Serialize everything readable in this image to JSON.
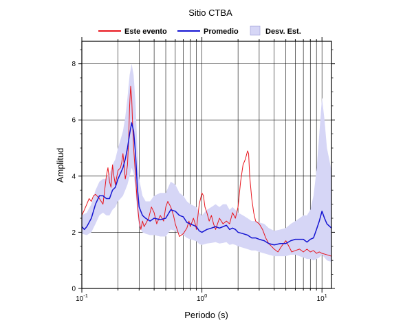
{
  "chart_data": {
    "type": "line",
    "title": "Sitio CTBA",
    "xlabel": "Periodo (s)",
    "ylabel": "Amplitud",
    "x_scale": "log",
    "xlim": [
      0.1,
      12
    ],
    "ylim": [
      0,
      8.8
    ],
    "x_tick_labels": [
      {
        "value": 0.1,
        "base": "10",
        "exp": "-1"
      },
      {
        "value": 1,
        "base": "10",
        "exp": "0"
      },
      {
        "value": 10,
        "base": "10",
        "exp": "1"
      }
    ],
    "y_ticks": [
      0,
      2,
      4,
      6,
      8
    ],
    "grid": true,
    "legend": {
      "placement": "top",
      "entries": [
        {
          "label": "Este evento",
          "kind": "line",
          "color": "#e8141c"
        },
        {
          "label": "Promedio",
          "kind": "line",
          "color": "#1414d2"
        },
        {
          "label": "Desv. Est.",
          "kind": "band",
          "color": "#d6d6f6"
        }
      ]
    },
    "series": [
      {
        "name": "Este evento",
        "color": "#e8141c",
        "points": [
          [
            0.1,
            2.6
          ],
          [
            0.105,
            2.8
          ],
          [
            0.11,
            3.0
          ],
          [
            0.115,
            3.2
          ],
          [
            0.12,
            3.1
          ],
          [
            0.125,
            3.3
          ],
          [
            0.13,
            3.35
          ],
          [
            0.14,
            3.2
          ],
          [
            0.15,
            3.0
          ],
          [
            0.155,
            3.5
          ],
          [
            0.16,
            4.0
          ],
          [
            0.165,
            4.3
          ],
          [
            0.17,
            3.8
          ],
          [
            0.175,
            3.6
          ],
          [
            0.18,
            4.4
          ],
          [
            0.185,
            4.0
          ],
          [
            0.19,
            3.7
          ],
          [
            0.2,
            4.2
          ],
          [
            0.21,
            4.3
          ],
          [
            0.215,
            4.5
          ],
          [
            0.22,
            4.8
          ],
          [
            0.225,
            4.4
          ],
          [
            0.23,
            3.9
          ],
          [
            0.235,
            4.1
          ],
          [
            0.24,
            4.4
          ],
          [
            0.245,
            5.2
          ],
          [
            0.25,
            6.5
          ],
          [
            0.255,
            7.2
          ],
          [
            0.26,
            6.8
          ],
          [
            0.265,
            5.8
          ],
          [
            0.27,
            5.0
          ],
          [
            0.28,
            4.0
          ],
          [
            0.29,
            3.0
          ],
          [
            0.3,
            2.4
          ],
          [
            0.31,
            2.1
          ],
          [
            0.32,
            2.4
          ],
          [
            0.33,
            2.2
          ],
          [
            0.34,
            2.3
          ],
          [
            0.36,
            2.5
          ],
          [
            0.38,
            2.9
          ],
          [
            0.4,
            2.7
          ],
          [
            0.42,
            2.3
          ],
          [
            0.45,
            2.6
          ],
          [
            0.48,
            2.4
          ],
          [
            0.5,
            2.9
          ],
          [
            0.52,
            3.1
          ],
          [
            0.55,
            2.9
          ],
          [
            0.58,
            2.6
          ],
          [
            0.6,
            2.3
          ],
          [
            0.65,
            1.85
          ],
          [
            0.7,
            1.95
          ],
          [
            0.75,
            2.15
          ],
          [
            0.78,
            2.4
          ],
          [
            0.8,
            2.2
          ],
          [
            0.85,
            2.5
          ],
          [
            0.88,
            2.3
          ],
          [
            0.9,
            2.1
          ],
          [
            0.95,
            3.0
          ],
          [
            1.0,
            3.4
          ],
          [
            1.03,
            3.3
          ],
          [
            1.06,
            2.9
          ],
          [
            1.1,
            2.7
          ],
          [
            1.15,
            2.4
          ],
          [
            1.2,
            2.6
          ],
          [
            1.25,
            2.3
          ],
          [
            1.3,
            2.1
          ],
          [
            1.4,
            2.5
          ],
          [
            1.5,
            2.3
          ],
          [
            1.6,
            2.4
          ],
          [
            1.7,
            2.3
          ],
          [
            1.8,
            2.7
          ],
          [
            1.9,
            2.5
          ],
          [
            2.0,
            2.9
          ],
          [
            2.1,
            3.8
          ],
          [
            2.2,
            4.4
          ],
          [
            2.3,
            4.6
          ],
          [
            2.4,
            4.9
          ],
          [
            2.45,
            4.8
          ],
          [
            2.5,
            4.0
          ],
          [
            2.6,
            3.2
          ],
          [
            2.7,
            2.7
          ],
          [
            2.8,
            2.4
          ],
          [
            3.0,
            2.3
          ],
          [
            3.2,
            2.1
          ],
          [
            3.4,
            1.8
          ],
          [
            3.6,
            1.6
          ],
          [
            3.8,
            1.5
          ],
          [
            4.0,
            1.4
          ],
          [
            4.3,
            1.3
          ],
          [
            4.6,
            1.5
          ],
          [
            5.0,
            1.7
          ],
          [
            5.3,
            1.5
          ],
          [
            5.6,
            1.3
          ],
          [
            6.0,
            1.35
          ],
          [
            6.5,
            1.4
          ],
          [
            7.0,
            1.3
          ],
          [
            7.5,
            1.4
          ],
          [
            8.0,
            1.3
          ],
          [
            8.5,
            1.35
          ],
          [
            9.0,
            1.25
          ],
          [
            9.5,
            1.3
          ],
          [
            10.0,
            1.25
          ],
          [
            11.0,
            1.2
          ],
          [
            12.0,
            1.15
          ]
        ]
      },
      {
        "name": "Promedio",
        "color": "#1414d2",
        "points": [
          [
            0.1,
            2.2
          ],
          [
            0.105,
            2.1
          ],
          [
            0.11,
            2.2
          ],
          [
            0.12,
            2.5
          ],
          [
            0.13,
            3.0
          ],
          [
            0.14,
            3.3
          ],
          [
            0.15,
            3.3
          ],
          [
            0.16,
            3.2
          ],
          [
            0.17,
            3.2
          ],
          [
            0.18,
            3.5
          ],
          [
            0.19,
            3.6
          ],
          [
            0.2,
            3.9
          ],
          [
            0.21,
            4.1
          ],
          [
            0.22,
            4.3
          ],
          [
            0.23,
            4.6
          ],
          [
            0.24,
            5.0
          ],
          [
            0.25,
            5.5
          ],
          [
            0.26,
            5.9
          ],
          [
            0.27,
            5.6
          ],
          [
            0.28,
            4.8
          ],
          [
            0.29,
            3.6
          ],
          [
            0.3,
            2.9
          ],
          [
            0.32,
            2.6
          ],
          [
            0.34,
            2.5
          ],
          [
            0.37,
            2.4
          ],
          [
            0.4,
            2.5
          ],
          [
            0.45,
            2.45
          ],
          [
            0.5,
            2.5
          ],
          [
            0.55,
            2.8
          ],
          [
            0.6,
            2.75
          ],
          [
            0.65,
            2.6
          ],
          [
            0.7,
            2.55
          ],
          [
            0.75,
            2.35
          ],
          [
            0.8,
            2.3
          ],
          [
            0.85,
            2.25
          ],
          [
            0.9,
            2.2
          ],
          [
            0.95,
            2.05
          ],
          [
            1.0,
            2.0
          ],
          [
            1.1,
            2.1
          ],
          [
            1.2,
            2.15
          ],
          [
            1.3,
            2.2
          ],
          [
            1.4,
            2.15
          ],
          [
            1.5,
            2.2
          ],
          [
            1.6,
            2.25
          ],
          [
            1.7,
            2.1
          ],
          [
            1.8,
            2.15
          ],
          [
            1.9,
            2.1
          ],
          [
            2.0,
            2.0
          ],
          [
            2.2,
            1.95
          ],
          [
            2.4,
            1.9
          ],
          [
            2.6,
            1.8
          ],
          [
            2.8,
            1.8
          ],
          [
            3.0,
            1.75
          ],
          [
            3.3,
            1.7
          ],
          [
            3.6,
            1.6
          ],
          [
            4.0,
            1.55
          ],
          [
            4.5,
            1.6
          ],
          [
            5.0,
            1.6
          ],
          [
            5.5,
            1.7
          ],
          [
            6.0,
            1.75
          ],
          [
            6.5,
            1.75
          ],
          [
            7.0,
            1.75
          ],
          [
            7.5,
            1.65
          ],
          [
            8.0,
            1.75
          ],
          [
            8.5,
            1.8
          ],
          [
            9.0,
            2.1
          ],
          [
            9.5,
            2.4
          ],
          [
            10.0,
            2.75
          ],
          [
            10.5,
            2.5
          ],
          [
            11.0,
            2.3
          ],
          [
            12.0,
            2.15
          ]
        ]
      },
      {
        "name": "Desv. Est.",
        "color": "#d6d6f6",
        "kind": "band",
        "upper": [
          [
            0.1,
            2.6
          ],
          [
            0.11,
            2.7
          ],
          [
            0.12,
            3.0
          ],
          [
            0.13,
            3.5
          ],
          [
            0.14,
            3.8
          ],
          [
            0.15,
            3.9
          ],
          [
            0.16,
            3.9
          ],
          [
            0.17,
            4.1
          ],
          [
            0.18,
            4.4
          ],
          [
            0.19,
            4.6
          ],
          [
            0.2,
            5.0
          ],
          [
            0.21,
            5.3
          ],
          [
            0.22,
            5.6
          ],
          [
            0.23,
            6.1
          ],
          [
            0.24,
            6.8
          ],
          [
            0.25,
            7.6
          ],
          [
            0.26,
            8.0
          ],
          [
            0.27,
            7.6
          ],
          [
            0.28,
            6.6
          ],
          [
            0.29,
            5.0
          ],
          [
            0.3,
            3.9
          ],
          [
            0.32,
            3.3
          ],
          [
            0.34,
            3.1
          ],
          [
            0.37,
            3.1
          ],
          [
            0.4,
            3.3
          ],
          [
            0.45,
            3.4
          ],
          [
            0.5,
            3.4
          ],
          [
            0.55,
            3.8
          ],
          [
            0.6,
            3.7
          ],
          [
            0.65,
            3.4
          ],
          [
            0.7,
            3.3
          ],
          [
            0.75,
            3.1
          ],
          [
            0.8,
            3.0
          ],
          [
            0.85,
            2.95
          ],
          [
            0.9,
            2.9
          ],
          [
            0.95,
            2.7
          ],
          [
            1.0,
            2.6
          ],
          [
            1.1,
            2.8
          ],
          [
            1.2,
            2.9
          ],
          [
            1.3,
            3.0
          ],
          [
            1.4,
            2.9
          ],
          [
            1.5,
            3.0
          ],
          [
            1.6,
            3.0
          ],
          [
            1.7,
            2.8
          ],
          [
            1.8,
            2.9
          ],
          [
            1.9,
            2.8
          ],
          [
            2.0,
            2.7
          ],
          [
            2.2,
            2.6
          ],
          [
            2.4,
            2.5
          ],
          [
            2.6,
            2.4
          ],
          [
            2.8,
            2.4
          ],
          [
            3.0,
            2.35
          ],
          [
            3.3,
            2.3
          ],
          [
            3.6,
            2.15
          ],
          [
            4.0,
            2.05
          ],
          [
            4.5,
            2.1
          ],
          [
            5.0,
            2.15
          ],
          [
            5.5,
            2.3
          ],
          [
            6.0,
            2.4
          ],
          [
            6.5,
            2.5
          ],
          [
            7.0,
            2.6
          ],
          [
            7.5,
            2.6
          ],
          [
            8.0,
            2.8
          ],
          [
            8.5,
            3.3
          ],
          [
            9.0,
            4.2
          ],
          [
            9.5,
            5.5
          ],
          [
            10.0,
            6.8
          ],
          [
            10.5,
            6.0
          ],
          [
            11.0,
            5.0
          ],
          [
            12.0,
            4.2
          ]
        ],
        "lower": [
          [
            0.1,
            1.95
          ],
          [
            0.11,
            1.9
          ],
          [
            0.12,
            2.0
          ],
          [
            0.13,
            2.3
          ],
          [
            0.14,
            2.6
          ],
          [
            0.15,
            2.7
          ],
          [
            0.16,
            2.6
          ],
          [
            0.17,
            2.6
          ],
          [
            0.18,
            2.8
          ],
          [
            0.19,
            2.9
          ],
          [
            0.2,
            3.1
          ],
          [
            0.21,
            3.2
          ],
          [
            0.22,
            3.3
          ],
          [
            0.23,
            3.5
          ],
          [
            0.24,
            3.7
          ],
          [
            0.25,
            4.0
          ],
          [
            0.26,
            4.3
          ],
          [
            0.27,
            4.1
          ],
          [
            0.28,
            3.5
          ],
          [
            0.29,
            2.7
          ],
          [
            0.3,
            2.2
          ],
          [
            0.32,
            2.0
          ],
          [
            0.34,
            1.95
          ],
          [
            0.37,
            1.9
          ],
          [
            0.4,
            1.9
          ],
          [
            0.45,
            1.85
          ],
          [
            0.5,
            1.85
          ],
          [
            0.55,
            2.1
          ],
          [
            0.6,
            2.05
          ],
          [
            0.65,
            1.95
          ],
          [
            0.7,
            1.9
          ],
          [
            0.75,
            1.8
          ],
          [
            0.8,
            1.75
          ],
          [
            0.85,
            1.72
          ],
          [
            0.9,
            1.68
          ],
          [
            0.95,
            1.58
          ],
          [
            1.0,
            1.55
          ],
          [
            1.1,
            1.6
          ],
          [
            1.2,
            1.62
          ],
          [
            1.3,
            1.65
          ],
          [
            1.4,
            1.6
          ],
          [
            1.5,
            1.62
          ],
          [
            1.6,
            1.65
          ],
          [
            1.7,
            1.55
          ],
          [
            1.8,
            1.58
          ],
          [
            1.9,
            1.55
          ],
          [
            2.0,
            1.5
          ],
          [
            2.2,
            1.45
          ],
          [
            2.4,
            1.4
          ],
          [
            2.6,
            1.35
          ],
          [
            2.8,
            1.35
          ],
          [
            3.0,
            1.3
          ],
          [
            3.3,
            1.25
          ],
          [
            3.6,
            1.2
          ],
          [
            4.0,
            1.15
          ],
          [
            4.5,
            1.15
          ],
          [
            5.0,
            1.15
          ],
          [
            5.5,
            1.2
          ],
          [
            6.0,
            1.2
          ],
          [
            6.5,
            1.15
          ],
          [
            7.0,
            1.1
          ],
          [
            7.5,
            1.05
          ],
          [
            8.0,
            1.05
          ],
          [
            8.5,
            1.0
          ],
          [
            9.0,
            1.05
          ],
          [
            9.5,
            1.1
          ],
          [
            10.0,
            1.2
          ],
          [
            10.5,
            1.1
          ],
          [
            11.0,
            1.0
          ],
          [
            12.0,
            0.95
          ]
        ]
      }
    ]
  }
}
